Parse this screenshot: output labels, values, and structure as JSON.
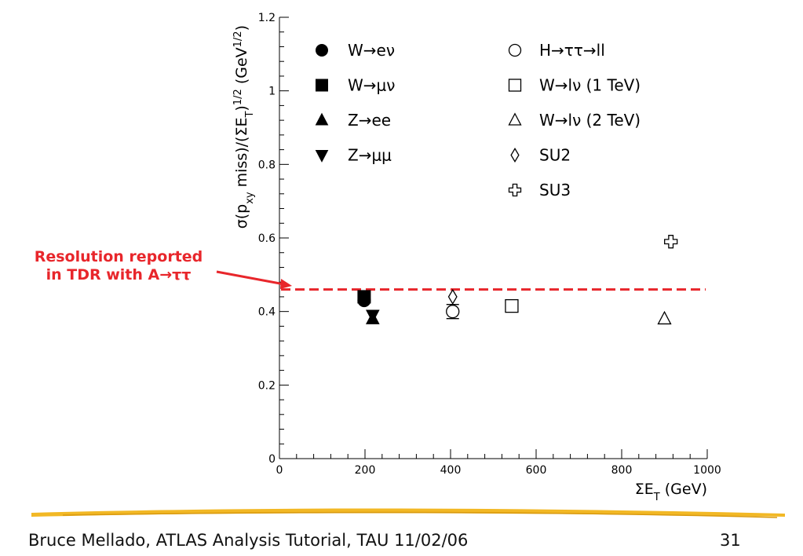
{
  "footer": {
    "author": "Bruce Mellado, ATLAS Analysis Tutorial, TAU 11/02/06",
    "page": "31"
  },
  "annotation": {
    "line1": "Resolution reported",
    "line2": "in TDR with A→ττ",
    "color": "#e8262b"
  },
  "chart_data": {
    "type": "scatter",
    "xlabel": "ΣE_T (GeV)",
    "ylabel": "σ(p_xy miss)/(ΣE_T)^1/2 (GeV^1/2)",
    "xlim": [
      0,
      1000
    ],
    "ylim": [
      0,
      1.2
    ],
    "x_ticks": [
      0,
      200,
      400,
      600,
      800,
      1000
    ],
    "y_ticks": [
      0,
      0.2,
      0.4,
      0.6,
      0.8,
      1,
      1.2
    ],
    "x_tick_labels": [
      "0",
      "200",
      "400",
      "600",
      "800",
      "1000"
    ],
    "y_tick_labels": [
      "0",
      "0.2",
      "0.4",
      "0.6",
      "0.8",
      "1",
      "1.2"
    ],
    "grid": false,
    "legend_placement": "top, two columns",
    "reference_line": {
      "y": 0.46,
      "style": "dashed",
      "color": "#e8262b"
    },
    "series": [
      {
        "name": "W→eν",
        "marker": "filled-circle",
        "x": [
          198
        ],
        "y": [
          0.43
        ]
      },
      {
        "name": "W→μν",
        "marker": "filled-square",
        "x": [
          198
        ],
        "y": [
          0.44
        ]
      },
      {
        "name": "Z→ee",
        "marker": "filled-triangle-up",
        "x": [
          218
        ],
        "y": [
          0.38
        ]
      },
      {
        "name": "Z→μμ",
        "marker": "filled-triangle-down",
        "x": [
          218
        ],
        "y": [
          0.39
        ]
      },
      {
        "name": "H→ττ→ll",
        "marker": "open-circle",
        "x": [
          405
        ],
        "y": [
          0.4
        ]
      },
      {
        "name": "W→lν (1 TeV)",
        "marker": "open-square",
        "x": [
          543
        ],
        "y": [
          0.415
        ]
      },
      {
        "name": "W→lν (2 TeV)",
        "marker": "open-triangle-up",
        "x": [
          900
        ],
        "y": [
          0.38
        ]
      },
      {
        "name": "SU2",
        "marker": "open-diamond",
        "x": [
          405
        ],
        "y": [
          0.44
        ]
      },
      {
        "name": "SU3",
        "marker": "open-cross",
        "x": [
          915
        ],
        "y": [
          0.59
        ]
      }
    ]
  }
}
